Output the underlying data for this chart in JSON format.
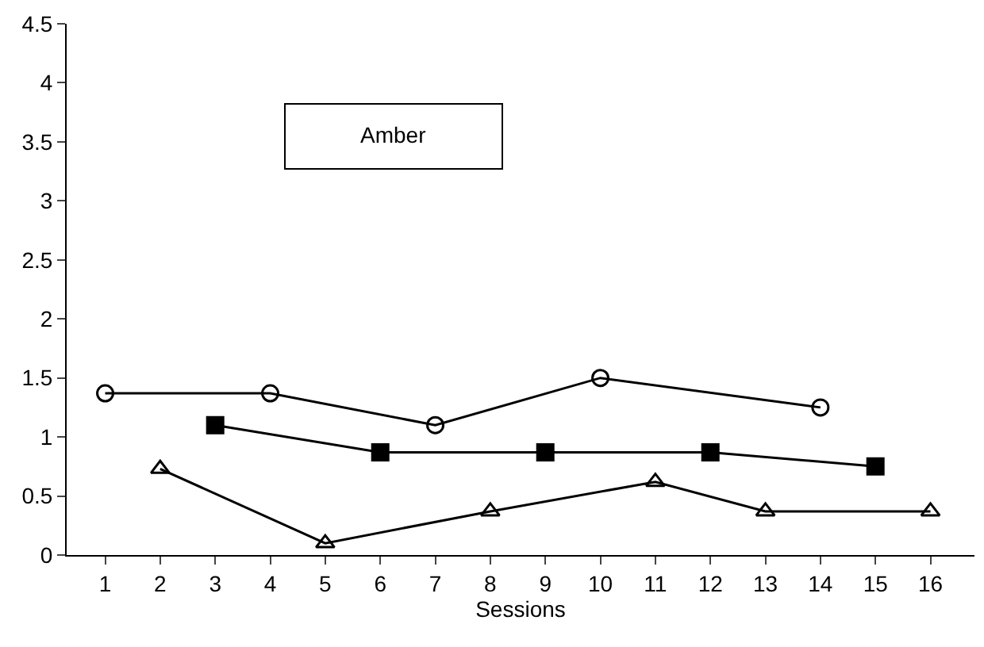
{
  "chart_data": {
    "type": "line",
    "xlabel": "Sessions",
    "annotations": [
      "Amber"
    ],
    "xlim": [
      0.3,
      16.8
    ],
    "xticks": [
      1,
      2,
      3,
      4,
      5,
      6,
      7,
      8,
      9,
      10,
      11,
      12,
      13,
      14,
      15,
      16
    ],
    "ylim": [
      0,
      4.5
    ],
    "yticks": [
      0,
      0.5,
      1,
      1.5,
      2,
      2.5,
      3,
      3.5,
      4,
      4.5
    ],
    "grid": false,
    "line_style": "solid",
    "series": [
      {
        "color": "#000000",
        "marker": "circle",
        "x": [
          1,
          4,
          7,
          10,
          14
        ],
        "values": [
          1.37,
          1.37,
          1.1,
          1.5,
          1.25
        ]
      },
      {
        "color": "#000000",
        "marker": "square",
        "x": [
          3,
          6,
          9,
          12,
          15
        ],
        "values": [
          1.1,
          0.87,
          0.87,
          0.87,
          0.75
        ]
      },
      {
        "color": "#000000",
        "marker": "triangle",
        "x": [
          2,
          5,
          8,
          11,
          13,
          16
        ],
        "values": [
          0.73,
          0.1,
          0.37,
          0.62,
          0.37,
          0.37
        ]
      }
    ]
  }
}
